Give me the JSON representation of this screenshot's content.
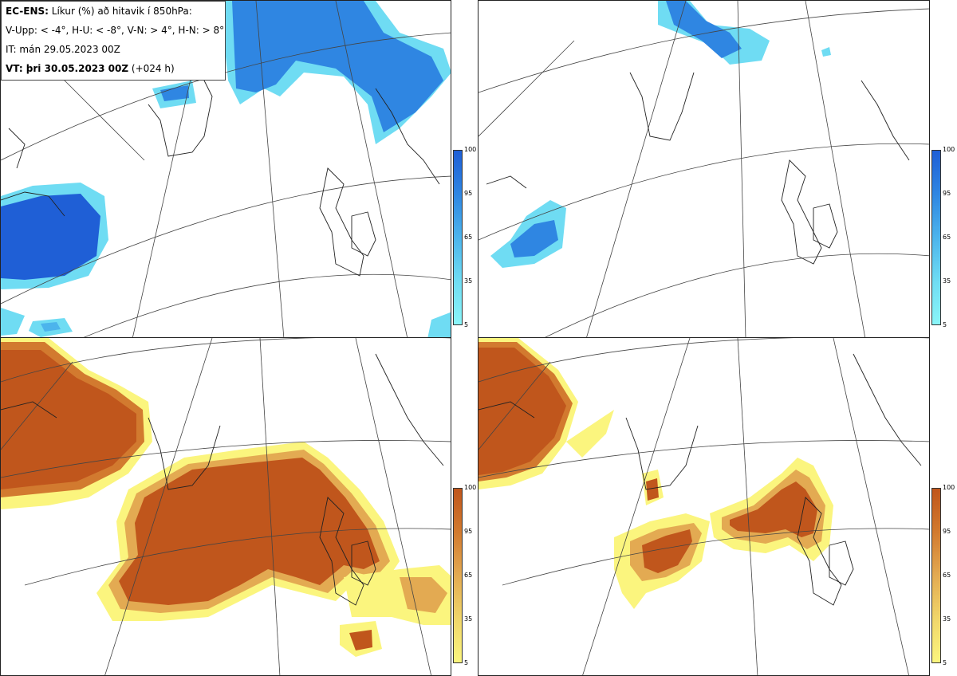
{
  "header": {
    "model": "EC-ENS:",
    "title": "Líkur (%) að hitavik í 850hPa:",
    "thresholds": "V-Upp: < -4°, H-U: < -8°, V-N: > 4°, H-N: > 8°",
    "init_time": "IT: mán 29.05.2023 00Z",
    "valid_label": "VT: þri 30.05.2023 00Z",
    "valid_offset": "(+024 h)"
  },
  "colorbars": {
    "ticks": [
      "100",
      "95",
      "65",
      "35",
      "5"
    ],
    "cold_colors": [
      "#1f5fd6",
      "#2f86e2",
      "#4cb4ec",
      "#6fdcf3",
      "#8af5f8"
    ],
    "warm_colors": [
      "#c0561c",
      "#d27a2f",
      "#e3aa52",
      "#f0d66a",
      "#fbf57e"
    ]
  },
  "panels": [
    {
      "id": "V-Upp",
      "scale": "cold"
    },
    {
      "id": "H-U",
      "scale": "cold"
    },
    {
      "id": "V-N",
      "scale": "warm"
    },
    {
      "id": "H-N",
      "scale": "warm"
    }
  ]
}
